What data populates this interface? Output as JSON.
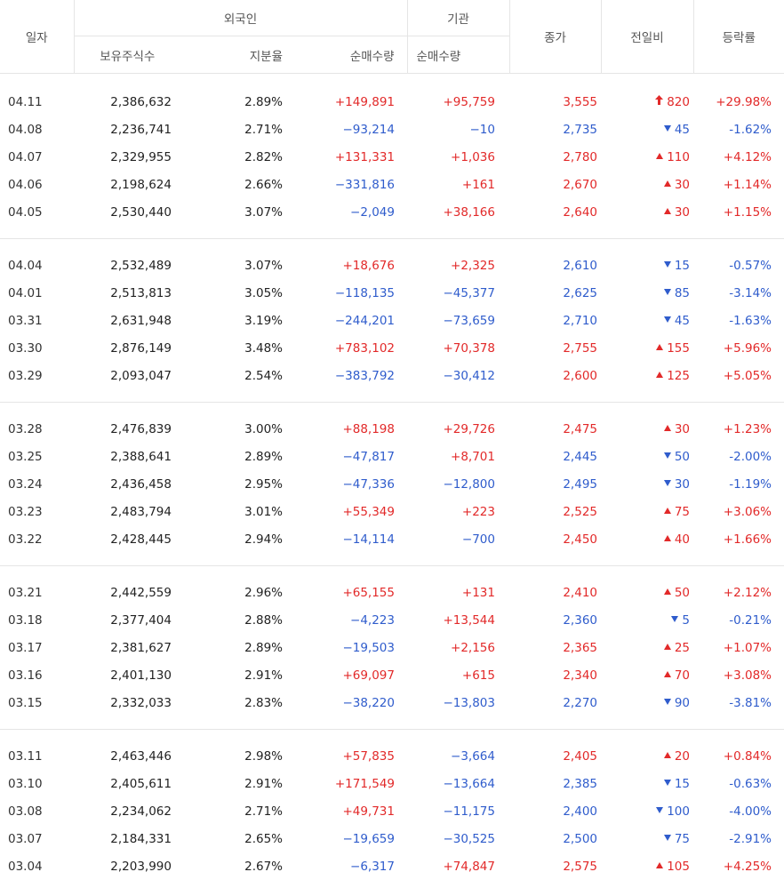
{
  "header": {
    "date": "일자",
    "foreign": "외국인",
    "institution": "기관",
    "close": "종가",
    "change": "전일비",
    "rate": "등락률",
    "holding": "보유주식수",
    "share": "지분율",
    "foreign_net": "순매수량",
    "inst_net": "순매수량"
  },
  "colors": {
    "up": "#e22929",
    "down": "#2f5ccc"
  },
  "groups": [
    [
      {
        "date": "04.11",
        "hold": "2,386,632",
        "share": "2.89%",
        "fnet": "+149,891",
        "inet": "+95,759",
        "close": "3,555",
        "chg": "820",
        "dir": "upper",
        "rate": "+29.98%"
      },
      {
        "date": "04.08",
        "hold": "2,236,741",
        "share": "2.71%",
        "fnet": "−93,214",
        "inet": "−10",
        "close": "2,735",
        "chg": "45",
        "dir": "down",
        "rate": "-1.62%"
      },
      {
        "date": "04.07",
        "hold": "2,329,955",
        "share": "2.82%",
        "fnet": "+131,331",
        "inet": "+1,036",
        "close": "2,780",
        "chg": "110",
        "dir": "up",
        "rate": "+4.12%"
      },
      {
        "date": "04.06",
        "hold": "2,198,624",
        "share": "2.66%",
        "fnet": "−331,816",
        "inet": "+161",
        "close": "2,670",
        "chg": "30",
        "dir": "up",
        "rate": "+1.14%"
      },
      {
        "date": "04.05",
        "hold": "2,530,440",
        "share": "3.07%",
        "fnet": "−2,049",
        "inet": "+38,166",
        "close": "2,640",
        "chg": "30",
        "dir": "up",
        "rate": "+1.15%"
      }
    ],
    [
      {
        "date": "04.04",
        "hold": "2,532,489",
        "share": "3.07%",
        "fnet": "+18,676",
        "inet": "+2,325",
        "close": "2,610",
        "chg": "15",
        "dir": "down",
        "rate": "-0.57%"
      },
      {
        "date": "04.01",
        "hold": "2,513,813",
        "share": "3.05%",
        "fnet": "−118,135",
        "inet": "−45,377",
        "close": "2,625",
        "chg": "85",
        "dir": "down",
        "rate": "-3.14%"
      },
      {
        "date": "03.31",
        "hold": "2,631,948",
        "share": "3.19%",
        "fnet": "−244,201",
        "inet": "−73,659",
        "close": "2,710",
        "chg": "45",
        "dir": "down",
        "rate": "-1.63%"
      },
      {
        "date": "03.30",
        "hold": "2,876,149",
        "share": "3.48%",
        "fnet": "+783,102",
        "inet": "+70,378",
        "close": "2,755",
        "chg": "155",
        "dir": "up",
        "rate": "+5.96%"
      },
      {
        "date": "03.29",
        "hold": "2,093,047",
        "share": "2.54%",
        "fnet": "−383,792",
        "inet": "−30,412",
        "close": "2,600",
        "chg": "125",
        "dir": "up",
        "rate": "+5.05%"
      }
    ],
    [
      {
        "date": "03.28",
        "hold": "2,476,839",
        "share": "3.00%",
        "fnet": "+88,198",
        "inet": "+29,726",
        "close": "2,475",
        "chg": "30",
        "dir": "up",
        "rate": "+1.23%"
      },
      {
        "date": "03.25",
        "hold": "2,388,641",
        "share": "2.89%",
        "fnet": "−47,817",
        "inet": "+8,701",
        "close": "2,445",
        "chg": "50",
        "dir": "down",
        "rate": "-2.00%"
      },
      {
        "date": "03.24",
        "hold": "2,436,458",
        "share": "2.95%",
        "fnet": "−47,336",
        "inet": "−12,800",
        "close": "2,495",
        "chg": "30",
        "dir": "down",
        "rate": "-1.19%"
      },
      {
        "date": "03.23",
        "hold": "2,483,794",
        "share": "3.01%",
        "fnet": "+55,349",
        "inet": "+223",
        "close": "2,525",
        "chg": "75",
        "dir": "up",
        "rate": "+3.06%"
      },
      {
        "date": "03.22",
        "hold": "2,428,445",
        "share": "2.94%",
        "fnet": "−14,114",
        "inet": "−700",
        "close": "2,450",
        "chg": "40",
        "dir": "up",
        "rate": "+1.66%"
      }
    ],
    [
      {
        "date": "03.21",
        "hold": "2,442,559",
        "share": "2.96%",
        "fnet": "+65,155",
        "inet": "+131",
        "close": "2,410",
        "chg": "50",
        "dir": "up",
        "rate": "+2.12%"
      },
      {
        "date": "03.18",
        "hold": "2,377,404",
        "share": "2.88%",
        "fnet": "−4,223",
        "inet": "+13,544",
        "close": "2,360",
        "chg": "5",
        "dir": "down",
        "rate": "-0.21%"
      },
      {
        "date": "03.17",
        "hold": "2,381,627",
        "share": "2.89%",
        "fnet": "−19,503",
        "inet": "+2,156",
        "close": "2,365",
        "chg": "25",
        "dir": "up",
        "rate": "+1.07%"
      },
      {
        "date": "03.16",
        "hold": "2,401,130",
        "share": "2.91%",
        "fnet": "+69,097",
        "inet": "+615",
        "close": "2,340",
        "chg": "70",
        "dir": "up",
        "rate": "+3.08%"
      },
      {
        "date": "03.15",
        "hold": "2,332,033",
        "share": "2.83%",
        "fnet": "−38,220",
        "inet": "−13,803",
        "close": "2,270",
        "chg": "90",
        "dir": "down",
        "rate": "-3.81%"
      }
    ],
    [
      {
        "date": "03.11",
        "hold": "2,463,446",
        "share": "2.98%",
        "fnet": "+57,835",
        "inet": "−3,664",
        "close": "2,405",
        "chg": "20",
        "dir": "up",
        "rate": "+0.84%"
      },
      {
        "date": "03.10",
        "hold": "2,405,611",
        "share": "2.91%",
        "fnet": "+171,549",
        "inet": "−13,664",
        "close": "2,385",
        "chg": "15",
        "dir": "down",
        "rate": "-0.63%"
      },
      {
        "date": "03.08",
        "hold": "2,234,062",
        "share": "2.71%",
        "fnet": "+49,731",
        "inet": "−11,175",
        "close": "2,400",
        "chg": "100",
        "dir": "down",
        "rate": "-4.00%"
      },
      {
        "date": "03.07",
        "hold": "2,184,331",
        "share": "2.65%",
        "fnet": "−19,659",
        "inet": "−30,525",
        "close": "2,500",
        "chg": "75",
        "dir": "down",
        "rate": "-2.91%"
      },
      {
        "date": "03.04",
        "hold": "2,203,990",
        "share": "2.67%",
        "fnet": "−6,317",
        "inet": "+74,847",
        "close": "2,575",
        "chg": "105",
        "dir": "up",
        "rate": "+4.25%"
      }
    ]
  ]
}
